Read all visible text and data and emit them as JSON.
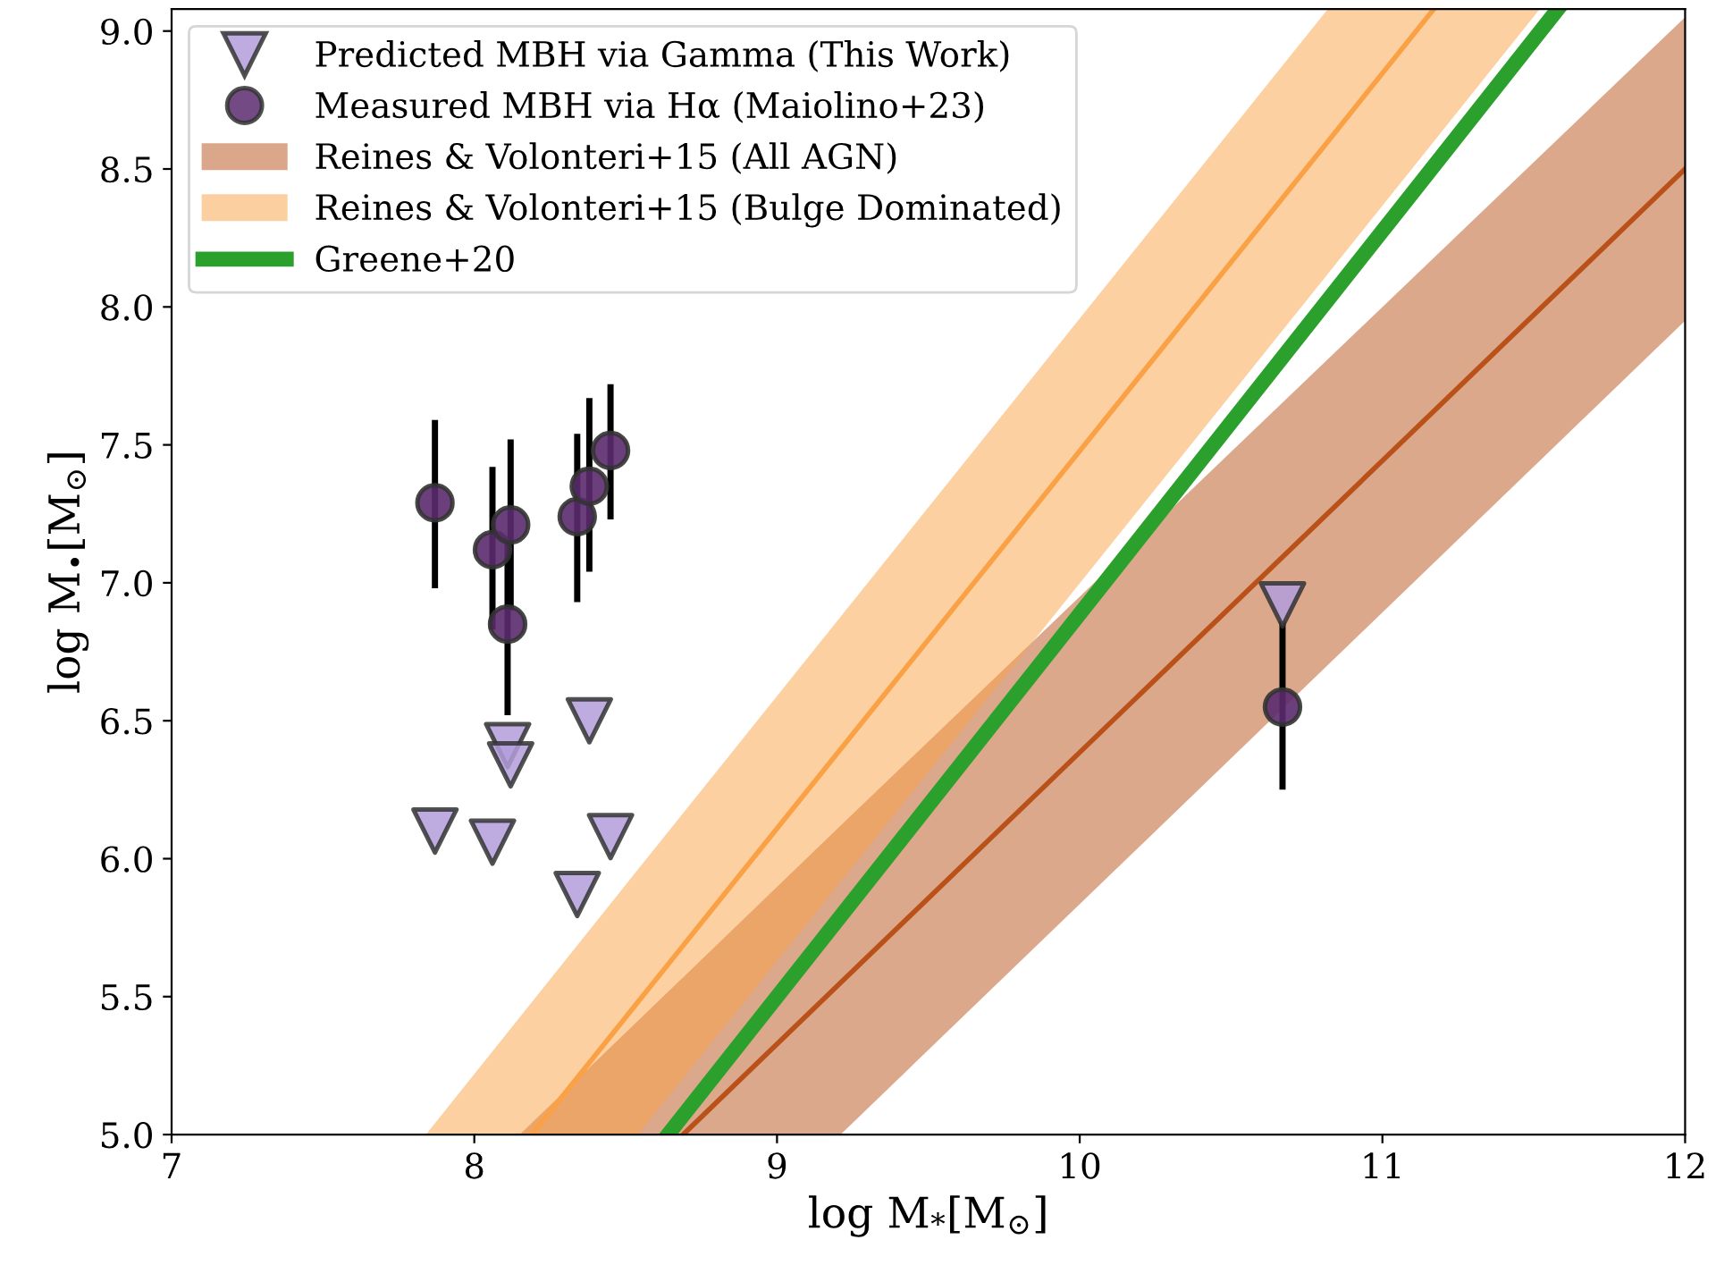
{
  "chart_data": {
    "type": "scatter",
    "xlabel": "log M$_{*}$[M$_{⊙}$]",
    "ylabel": "log M$_{•}$[M$_{⊙}$]",
    "xlim": [
      7,
      12
    ],
    "ylim": [
      5,
      9.08
    ],
    "xticks": [
      7,
      8,
      9,
      10,
      11,
      12
    ],
    "yticks": [
      {
        "value": 5,
        "label": "5.0"
      },
      {
        "value": 5.5,
        "label": "5.5"
      },
      {
        "value": 6,
        "label": "6.0"
      },
      {
        "value": 6.5,
        "label": "6.5"
      },
      {
        "value": 7,
        "label": "7.0"
      },
      {
        "value": 7.5,
        "label": "7.5"
      },
      {
        "value": 8,
        "label": "8.0"
      },
      {
        "value": 8.5,
        "label": "8.5"
      },
      {
        "value": 9,
        "label": "9.0"
      }
    ],
    "grid": false,
    "legend": "top left",
    "series": [
      {
        "name": "Reines & Volonteri+15 (All AGN)",
        "type": "line",
        "color": "#b95119",
        "x": [
          8.15,
          8.69,
          9.21,
          12
        ],
        "values": [
          null,
          5,
          5.55,
          8.5
        ],
        "lower": [
          5,
          5,
          5,
          7.95
        ],
        "upper": [
          5,
          5.57,
          6.12,
          9.05
        ]
      },
      {
        "name": "Reines & Volonteri+15 (Bulge Dominated)",
        "type": "line",
        "color": "#fba145",
        "x": [
          7.84,
          8.19,
          8.54,
          10.82,
          11.17,
          11.52
        ],
        "values": [
          null,
          5,
          5.48,
          8.6,
          9.08,
          null
        ],
        "lower": [
          5,
          5,
          5,
          8.12,
          8.6,
          9.08
        ],
        "upper": [
          5,
          5.48,
          5.96,
          9.08,
          9.08,
          9.08
        ]
      },
      {
        "name": "Greene+20",
        "type": "line",
        "color": "#2ca02c",
        "x": [
          8.64,
          11.58
        ],
        "values": [
          5,
          9.08
        ]
      },
      {
        "name": "Predicted MBH via Gamma (This Work)",
        "marker": "triangle",
        "color": "#b39ddb",
        "x": [
          7.87,
          8.06,
          8.11,
          8.12,
          8.38,
          8.34,
          8.45,
          10.67
        ],
        "values": [
          6.1,
          6.06,
          6.41,
          6.34,
          6.5,
          5.87,
          6.08,
          6.92
        ]
      },
      {
        "name": "Measured MBH via Hα (Maiolino+23)",
        "marker": "circle",
        "color": "#5b2a6e",
        "x": [
          7.87,
          8.06,
          8.12,
          8.11,
          8.34,
          8.38,
          8.45,
          10.67
        ],
        "values": [
          7.29,
          7.12,
          7.21,
          6.85,
          7.24,
          7.35,
          7.48,
          6.55
        ],
        "errors": [
          [
            6.98,
            7.59
          ],
          [
            6.83,
            7.42
          ],
          [
            6.9,
            7.52
          ],
          [
            6.52,
            7.15
          ],
          [
            6.93,
            7.54
          ],
          [
            7.04,
            7.67
          ],
          [
            7.23,
            7.72
          ],
          [
            6.25,
            6.86
          ]
        ]
      }
    ]
  }
}
